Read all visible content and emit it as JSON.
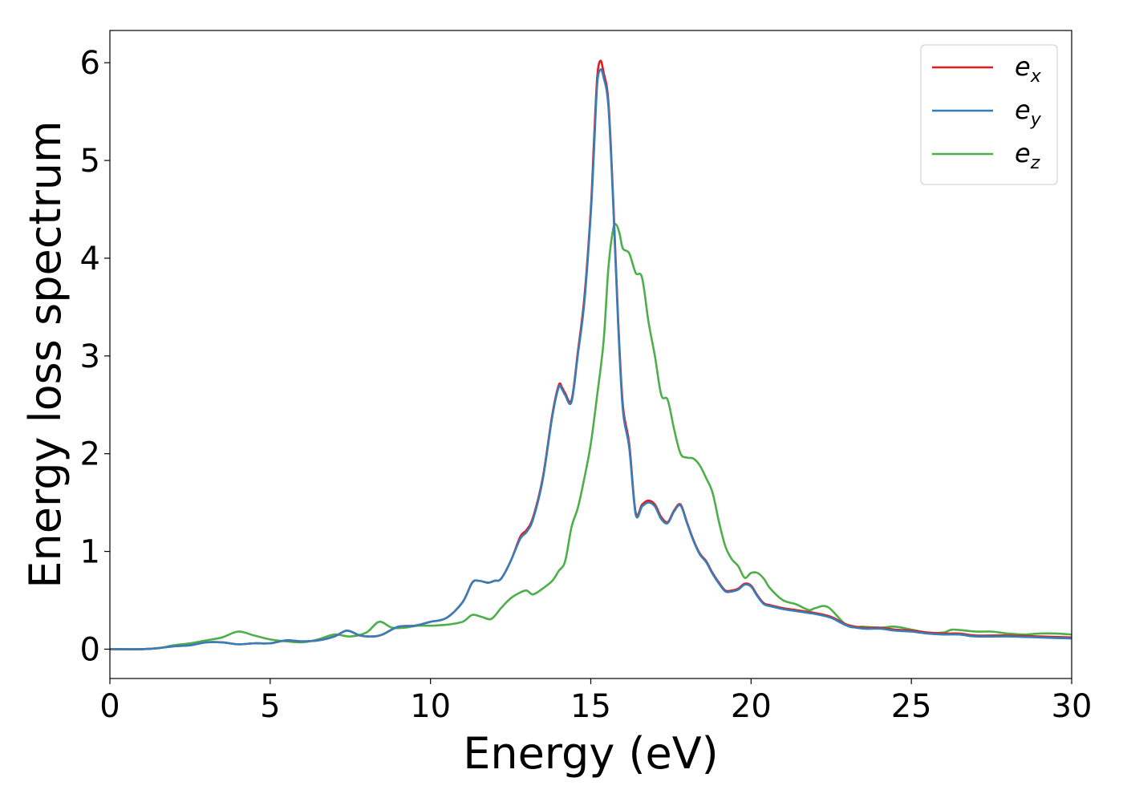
{
  "chart_data": {
    "type": "line",
    "title": "",
    "xlabel": "Energy (eV)",
    "ylabel": "Energy loss spectrum",
    "xlim": [
      0,
      30
    ],
    "ylim": [
      -0.3,
      6.33
    ],
    "xticks": [
      0,
      5,
      10,
      15,
      20,
      25,
      30
    ],
    "yticks": [
      0,
      1,
      2,
      3,
      4,
      5,
      6
    ],
    "xtick_labels": [
      "0",
      "5",
      "10",
      "15",
      "20",
      "25",
      "30"
    ],
    "ytick_labels": [
      "0",
      "1",
      "2",
      "3",
      "4",
      "5",
      "6"
    ],
    "grid": false,
    "legend_position": "top-right",
    "series": [
      {
        "name": "e_x",
        "legend_base": "e",
        "legend_sub": "x",
        "color": "#e41a1c",
        "x": [
          0,
          1,
          1.5,
          2,
          2.5,
          3,
          3.5,
          4,
          4.5,
          5,
          5.5,
          6,
          6.5,
          7,
          7.4,
          7.8,
          8.2,
          8.5,
          9,
          9.5,
          10,
          10.5,
          11,
          11.3,
          11.5,
          11.8,
          12,
          12.2,
          12.5,
          12.8,
          13,
          13.2,
          13.5,
          13.8,
          14,
          14.1,
          14.2,
          14.4,
          14.6,
          14.8,
          15,
          15.1,
          15.2,
          15.3,
          15.4,
          15.55,
          15.7,
          15.85,
          16,
          16.2,
          16.4,
          16.6,
          16.8,
          17,
          17.2,
          17.4,
          17.6,
          17.8,
          18,
          18.2,
          18.4,
          18.6,
          18.8,
          19,
          19.2,
          19.4,
          19.6,
          19.8,
          20,
          20.2,
          20.4,
          20.6,
          21,
          21.4,
          21.8,
          22,
          22.5,
          23,
          23.5,
          24,
          24.5,
          25,
          25.5,
          26,
          26.5,
          27,
          28,
          29,
          30
        ],
        "y": [
          0.0,
          0.0,
          0.01,
          0.03,
          0.04,
          0.07,
          0.07,
          0.05,
          0.06,
          0.06,
          0.09,
          0.08,
          0.09,
          0.13,
          0.19,
          0.14,
          0.13,
          0.15,
          0.23,
          0.24,
          0.28,
          0.32,
          0.48,
          0.68,
          0.7,
          0.68,
          0.7,
          0.72,
          0.9,
          1.15,
          1.22,
          1.35,
          1.75,
          2.4,
          2.7,
          2.68,
          2.62,
          2.55,
          3.05,
          3.6,
          4.5,
          5.2,
          5.85,
          6.02,
          5.9,
          5.6,
          4.6,
          3.4,
          2.5,
          2.1,
          1.4,
          1.48,
          1.52,
          1.48,
          1.35,
          1.3,
          1.42,
          1.48,
          1.3,
          1.12,
          0.98,
          0.9,
          0.78,
          0.68,
          0.6,
          0.6,
          0.62,
          0.67,
          0.65,
          0.55,
          0.47,
          0.45,
          0.42,
          0.4,
          0.38,
          0.37,
          0.33,
          0.25,
          0.22,
          0.22,
          0.2,
          0.19,
          0.17,
          0.16,
          0.16,
          0.14,
          0.14,
          0.13,
          0.12
        ]
      },
      {
        "name": "e_y",
        "legend_base": "e",
        "legend_sub": "y",
        "color": "#377eb8",
        "x": [
          0,
          1,
          1.5,
          2,
          2.5,
          3,
          3.5,
          4,
          4.5,
          5,
          5.5,
          6,
          6.5,
          7,
          7.4,
          7.8,
          8.2,
          8.5,
          9,
          9.5,
          10,
          10.5,
          11,
          11.3,
          11.5,
          11.8,
          12,
          12.2,
          12.5,
          12.8,
          13,
          13.2,
          13.5,
          13.8,
          14,
          14.1,
          14.2,
          14.4,
          14.6,
          14.8,
          15,
          15.1,
          15.2,
          15.3,
          15.4,
          15.55,
          15.7,
          15.85,
          16,
          16.2,
          16.4,
          16.6,
          16.8,
          17,
          17.2,
          17.4,
          17.6,
          17.8,
          18,
          18.2,
          18.4,
          18.6,
          18.8,
          19,
          19.2,
          19.4,
          19.6,
          19.8,
          20,
          20.2,
          20.4,
          20.6,
          21,
          21.4,
          21.8,
          22,
          22.5,
          23,
          23.5,
          24,
          24.5,
          25,
          25.5,
          26,
          26.5,
          27,
          28,
          29,
          30
        ],
        "y": [
          0.0,
          0.0,
          0.01,
          0.03,
          0.04,
          0.07,
          0.07,
          0.05,
          0.06,
          0.06,
          0.09,
          0.08,
          0.09,
          0.13,
          0.19,
          0.14,
          0.13,
          0.15,
          0.23,
          0.24,
          0.28,
          0.32,
          0.48,
          0.68,
          0.7,
          0.68,
          0.7,
          0.72,
          0.9,
          1.13,
          1.2,
          1.33,
          1.73,
          2.38,
          2.68,
          2.66,
          2.6,
          2.53,
          3.02,
          3.55,
          4.45,
          5.1,
          5.78,
          5.93,
          5.85,
          5.55,
          4.55,
          3.35,
          2.45,
          2.06,
          1.38,
          1.46,
          1.5,
          1.46,
          1.33,
          1.29,
          1.41,
          1.47,
          1.29,
          1.11,
          0.97,
          0.89,
          0.77,
          0.67,
          0.59,
          0.59,
          0.61,
          0.66,
          0.64,
          0.54,
          0.46,
          0.44,
          0.41,
          0.39,
          0.37,
          0.36,
          0.32,
          0.24,
          0.21,
          0.21,
          0.19,
          0.18,
          0.16,
          0.15,
          0.15,
          0.13,
          0.13,
          0.12,
          0.11
        ]
      },
      {
        "name": "e_z",
        "legend_base": "e",
        "legend_sub": "z",
        "color": "#4daf4a",
        "x": [
          0,
          1,
          1.5,
          2,
          2.5,
          3,
          3.5,
          4,
          4.5,
          5,
          5.5,
          6,
          6.5,
          7,
          7.5,
          8,
          8.4,
          8.8,
          9.2,
          9.6,
          10,
          10.5,
          11,
          11.3,
          11.6,
          11.9,
          12.2,
          12.5,
          12.8,
          13,
          13.2,
          13.5,
          13.8,
          14,
          14.2,
          14.4,
          14.6,
          14.8,
          15,
          15.2,
          15.4,
          15.55,
          15.7,
          15.8,
          15.9,
          16,
          16.2,
          16.4,
          16.6,
          16.8,
          17,
          17.2,
          17.4,
          17.6,
          17.8,
          18,
          18.2,
          18.4,
          18.6,
          18.8,
          19,
          19.2,
          19.4,
          19.6,
          19.8,
          20,
          20.2,
          20.4,
          20.6,
          21,
          21.4,
          21.8,
          22,
          22.4,
          23,
          23.5,
          24,
          24.5,
          25,
          25.5,
          26,
          26.3,
          27,
          27.5,
          28,
          28.5,
          29,
          29.5,
          30
        ],
        "y": [
          0.0,
          0.0,
          0.01,
          0.04,
          0.06,
          0.09,
          0.12,
          0.18,
          0.14,
          0.1,
          0.08,
          0.07,
          0.1,
          0.15,
          0.13,
          0.17,
          0.28,
          0.22,
          0.22,
          0.24,
          0.24,
          0.25,
          0.28,
          0.35,
          0.33,
          0.31,
          0.42,
          0.52,
          0.58,
          0.6,
          0.56,
          0.62,
          0.7,
          0.8,
          0.9,
          1.25,
          1.45,
          1.75,
          2.1,
          2.6,
          3.15,
          3.9,
          4.3,
          4.34,
          4.25,
          4.1,
          4.05,
          3.85,
          3.8,
          3.35,
          3.0,
          2.6,
          2.55,
          2.25,
          2.0,
          1.96,
          1.95,
          1.88,
          1.75,
          1.6,
          1.3,
          1.05,
          0.92,
          0.85,
          0.73,
          0.78,
          0.78,
          0.72,
          0.62,
          0.5,
          0.46,
          0.4,
          0.42,
          0.43,
          0.24,
          0.23,
          0.22,
          0.23,
          0.2,
          0.17,
          0.17,
          0.2,
          0.18,
          0.18,
          0.16,
          0.15,
          0.16,
          0.16,
          0.15
        ]
      }
    ]
  }
}
